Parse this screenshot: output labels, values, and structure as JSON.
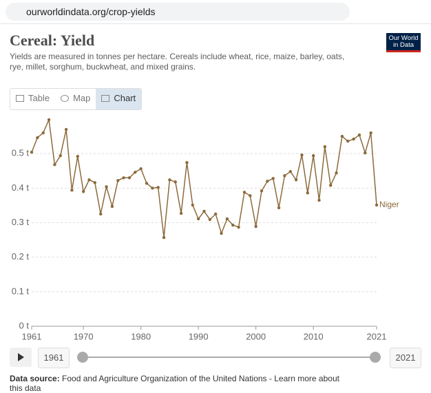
{
  "browser": {
    "url": "ourworldindata.org/crop-yields"
  },
  "logo": {
    "line1": "Our World",
    "line2": "in Data"
  },
  "tabs": [
    "Table",
    "Map",
    "Chart"
  ],
  "timeline": {
    "start": "1961",
    "end": "2021"
  },
  "footer": {
    "label": "Data source:",
    "source": "Food and Agriculture Organization of the United Nations - ",
    "link": "Learn more about this data"
  },
  "chart_data": {
    "type": "line",
    "title": "Cereal: Yield",
    "subtitle": "Yields are measured in tonnes per hectare. Cereals include wheat, rice, maize, barley, oats, rye, millet, sorghum, buckwheat, and mixed grains.",
    "x": [
      1961,
      1962,
      1963,
      1964,
      1965,
      1966,
      1967,
      1968,
      1969,
      1970,
      1971,
      1972,
      1973,
      1974,
      1975,
      1976,
      1977,
      1978,
      1979,
      1980,
      1981,
      1982,
      1983,
      1984,
      1985,
      1986,
      1987,
      1988,
      1989,
      1990,
      1991,
      1992,
      1993,
      1994,
      1995,
      1996,
      1997,
      1998,
      1999,
      2000,
      2001,
      2002,
      2003,
      2004,
      2005,
      2006,
      2007,
      2008,
      2009,
      2010,
      2011,
      2012,
      2013,
      2014,
      2015,
      2016,
      2017,
      2018,
      2019,
      2020,
      2021
    ],
    "series": [
      {
        "name": "Niger",
        "color": "#8c6a3c",
        "values": [
          0.504,
          0.546,
          0.56,
          0.598,
          0.468,
          0.494,
          0.57,
          0.394,
          0.492,
          0.39,
          0.424,
          0.416,
          0.325,
          0.404,
          0.347,
          0.422,
          0.43,
          0.43,
          0.446,
          0.456,
          0.414,
          0.4,
          0.402,
          0.257,
          0.424,
          0.418,
          0.327,
          0.474,
          0.351,
          0.311,
          0.333,
          0.309,
          0.325,
          0.269,
          0.311,
          0.293,
          0.287,
          0.388,
          0.378,
          0.289,
          0.392,
          0.42,
          0.428,
          0.343,
          0.436,
          0.448,
          0.424,
          0.496,
          0.386,
          0.494,
          0.365,
          0.52,
          0.408,
          0.444,
          0.55,
          0.536,
          0.542,
          0.554,
          0.502,
          0.56,
          0.351
        ]
      }
    ],
    "xlim": [
      1961,
      2021
    ],
    "xticks": [
      1961,
      1970,
      1980,
      1990,
      2000,
      2010,
      2021
    ],
    "ylim": [
      0,
      0.6
    ],
    "yticks": [
      {
        "value": 0,
        "label": "0 t"
      },
      {
        "value": 0.1,
        "label": "0.1 t"
      },
      {
        "value": 0.2,
        "label": "0.2 t"
      },
      {
        "value": 0.3,
        "label": "0.3 t"
      },
      {
        "value": 0.4,
        "label": "0.4 t"
      },
      {
        "value": 0.5,
        "label": "0.5 t"
      }
    ],
    "grid": true
  }
}
